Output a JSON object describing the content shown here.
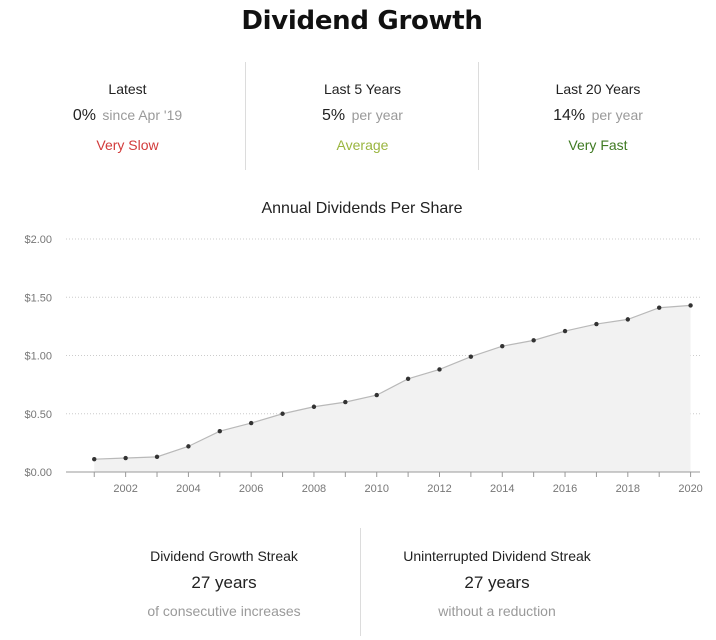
{
  "title": "Dividend Growth",
  "stats": [
    {
      "label": "Latest",
      "value": "0%",
      "unit": "since Apr '19",
      "rating": "Very Slow",
      "rating_color": "#d23b3b"
    },
    {
      "label": "Last 5 Years",
      "value": "5%",
      "unit": "per year",
      "rating": "Average",
      "rating_color": "#9ab53f"
    },
    {
      "label": "Last 20 Years",
      "value": "14%",
      "unit": "per year",
      "rating": "Very Fast",
      "rating_color": "#3f7a22"
    }
  ],
  "chart_title": "Annual Dividends Per Share",
  "chart_data": {
    "type": "area",
    "title": "Annual Dividends Per Share",
    "x": [
      2001,
      2002,
      2003,
      2004,
      2005,
      2006,
      2007,
      2008,
      2009,
      2010,
      2011,
      2012,
      2013,
      2014,
      2015,
      2016,
      2017,
      2018,
      2019,
      2020
    ],
    "values": [
      0.11,
      0.12,
      0.13,
      0.22,
      0.35,
      0.42,
      0.5,
      0.56,
      0.6,
      0.66,
      0.8,
      0.88,
      0.99,
      1.08,
      1.13,
      1.21,
      1.27,
      1.31,
      1.41,
      1.43
    ],
    "x_tick_labels": [
      "2002",
      "2004",
      "2006",
      "2008",
      "2010",
      "2012",
      "2014",
      "2016",
      "2018",
      "2020"
    ],
    "y_tick_labels": [
      "$0.00",
      "$0.50",
      "$1.00",
      "$1.50",
      "$2.00"
    ],
    "y_ticks": [
      0,
      0.5,
      1.0,
      1.5,
      2.0
    ],
    "ylim": [
      0,
      2.0
    ],
    "xlim": [
      2000.1,
      2020.3
    ],
    "grid": true,
    "colors": {
      "line": "#b9b9b9",
      "fill": "#f2f2f2",
      "point": "#333333",
      "grid": "#cccccc",
      "axis": "#999999"
    }
  },
  "streaks": [
    {
      "label": "Dividend Growth Streak",
      "value": "27 years",
      "note": "of consecutive increases"
    },
    {
      "label": "Uninterrupted Dividend Streak",
      "value": "27 years",
      "note": "without a reduction"
    }
  ]
}
